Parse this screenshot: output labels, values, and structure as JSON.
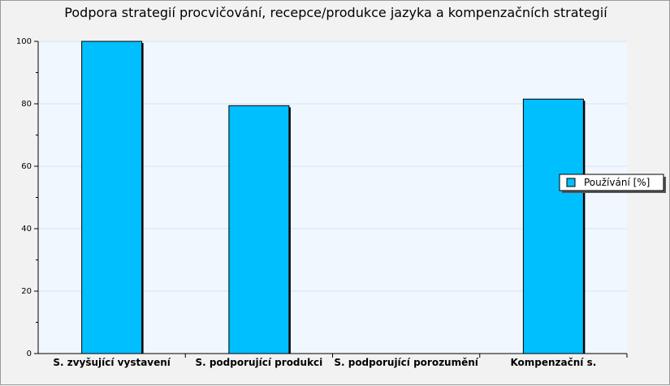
{
  "chart_data": {
    "type": "bar",
    "title": "Podpora strategií procvičování, recepce/produkce jazyka a kompenzačních strategií",
    "categories": [
      "S. zvyšující vystavení",
      "S. podporující produkci",
      "S. podporující porozumění",
      "Kompenzační s."
    ],
    "series": [
      {
        "name": "Používání [%]",
        "values": [
          100,
          79.4,
          0,
          81.5
        ]
      }
    ],
    "ylim": [
      0,
      100
    ],
    "yticks": [
      0,
      20,
      40,
      60,
      80,
      100
    ],
    "grid": true,
    "legend_position": "right",
    "colors": {
      "bar": "#00BFFF",
      "bar_border": "#000000",
      "plot_bg": "#F0F7FF",
      "grid": "#D8E2EC"
    }
  }
}
